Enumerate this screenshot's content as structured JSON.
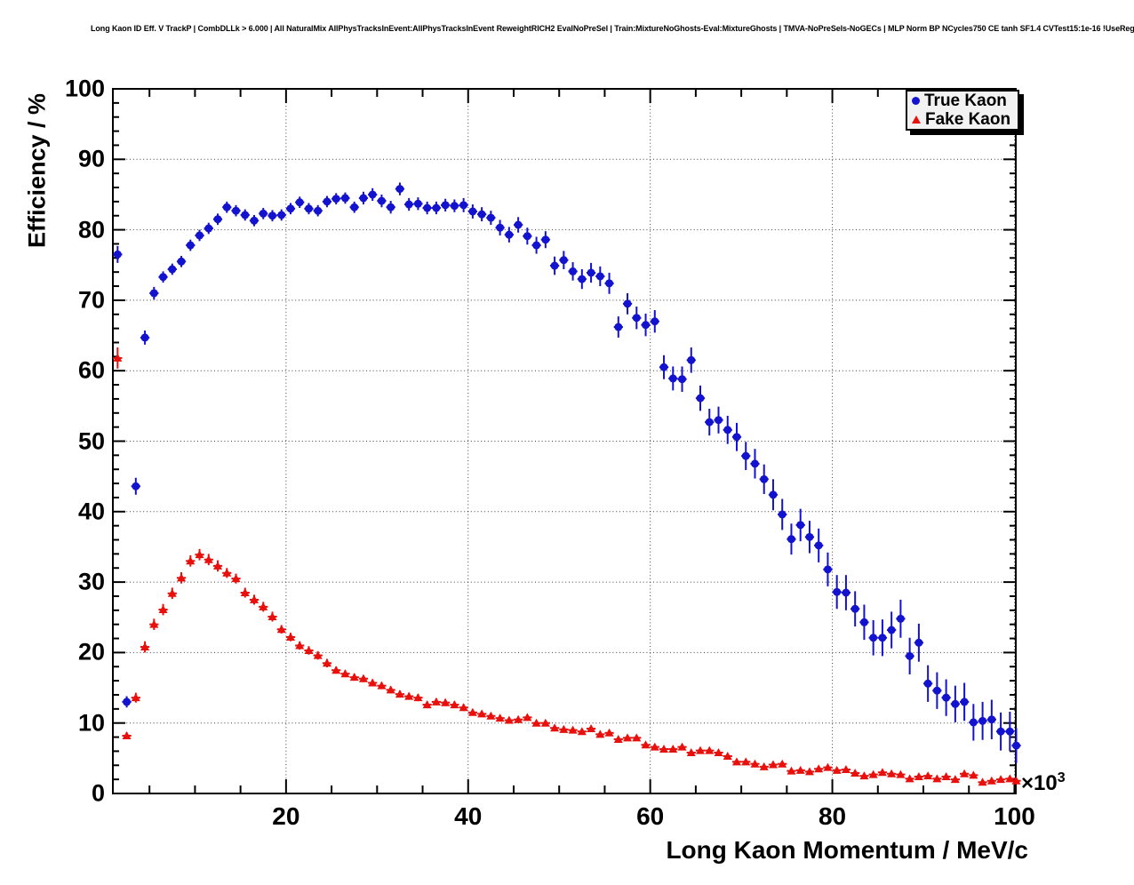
{
  "title": "Long Kaon ID Eff. V TrackP | CombDLLk > 6.000 | All NaturalMix AllPhysTracksInEvent:AllPhysTracksInEvent ReweightRICH2 EvalNoPreSel | Train:MixtureNoGhosts-Eval:MixtureGhosts | TMVA-NoPreSels-NoGECs | MLP Norm BP NCycles750 CE tanh SF1.4 CVTest15:1e-16 !UseReg",
  "colors": {
    "true_kaon": "#1212cf",
    "fake_kaon": "#e8100c",
    "frame": "#000000",
    "legend_bg": "#f2f2f2"
  },
  "chart_data": {
    "type": "scatter",
    "title": "Long Kaon ID Eff. V TrackP | CombDLLk > 6.000 | All NaturalMix AllPhysTracksInEvent:AllPhysTracksInEvent ReweightRICH2 EvalNoPreSel | Train:MixtureNoGhosts-Eval:MixtureGhosts | TMVA-NoPreSels-NoGECs | MLP Norm BP NCycles750 CE tanh SF1.4 CVTest15:1e-16 !UseReg",
    "xlabel": "Long Kaon Momentum / MeV/c",
    "ylabel": "Efficiency / %",
    "x_scale_base": "×10",
    "x_scale_exp": "3",
    "xlim": [
      0.98,
      100.15
    ],
    "ylim": [
      0,
      100
    ],
    "x_ticks": [
      20,
      40,
      60,
      80,
      100
    ],
    "y_ticks": [
      0,
      10,
      20,
      30,
      40,
      50,
      60,
      70,
      80,
      90,
      100
    ],
    "x_minor_step": 5,
    "y_minor_step": 2,
    "grid": true,
    "legend_position": "top-right",
    "x_units_note": "momentum values in units of 10^3 MeV/c, 1 GeV bins, xerr = half bin width",
    "xerr": 0.5,
    "x": [
      1.5,
      2.5,
      3.5,
      4.5,
      5.5,
      6.5,
      7.5,
      8.5,
      9.5,
      10.5,
      11.5,
      12.5,
      13.5,
      14.5,
      15.5,
      16.5,
      17.5,
      18.5,
      19.5,
      20.5,
      21.5,
      22.5,
      23.5,
      24.5,
      25.5,
      26.5,
      27.5,
      28.5,
      29.5,
      30.5,
      31.5,
      32.5,
      33.5,
      34.5,
      35.5,
      36.5,
      37.5,
      38.5,
      39.5,
      40.5,
      41.5,
      42.5,
      43.5,
      44.5,
      45.5,
      46.5,
      47.5,
      48.5,
      49.5,
      50.5,
      51.5,
      52.5,
      53.5,
      54.5,
      55.5,
      56.5,
      57.5,
      58.5,
      59.5,
      60.5,
      61.5,
      62.5,
      63.5,
      64.5,
      65.5,
      66.5,
      67.5,
      68.5,
      69.5,
      70.5,
      71.5,
      72.5,
      73.5,
      74.5,
      75.5,
      76.5,
      77.5,
      78.5,
      79.5,
      80.5,
      81.5,
      82.5,
      83.5,
      84.5,
      85.5,
      86.5,
      87.5,
      88.5,
      89.5,
      90.5,
      91.5,
      92.5,
      93.5,
      94.5,
      95.5,
      96.5,
      97.5,
      98.5,
      99.5,
      100.2
    ],
    "series": [
      {
        "name": "True Kaon",
        "marker": "circle",
        "color": "#1212cf",
        "y": [
          76.5,
          13.0,
          43.6,
          64.7,
          71.0,
          73.3,
          74.4,
          75.5,
          77.8,
          79.2,
          80.2,
          81.5,
          83.2,
          82.7,
          82.1,
          81.3,
          82.3,
          82.0,
          82.1,
          83.0,
          83.9,
          83.0,
          82.7,
          84.0,
          84.4,
          84.5,
          83.2,
          84.5,
          85.0,
          84.1,
          83.2,
          85.8,
          83.6,
          83.7,
          83.1,
          83.1,
          83.5,
          83.4,
          83.5,
          82.6,
          82.2,
          81.7,
          80.3,
          79.3,
          80.7,
          79.1,
          77.8,
          78.6,
          74.9,
          75.7,
          74.1,
          73.0,
          73.9,
          73.4,
          72.4,
          66.2,
          69.5,
          67.5,
          66.5,
          67.0,
          60.5,
          58.9,
          58.8,
          61.5,
          56.1,
          52.7,
          53.0,
          51.6,
          50.6,
          47.9,
          46.8,
          44.6,
          42.4,
          39.6,
          36.1,
          38.1,
          36.4,
          35.2,
          31.8,
          28.6,
          28.5,
          26.2,
          24.3,
          22.1,
          22.1,
          23.2,
          24.8,
          19.5,
          21.4,
          15.6,
          14.6,
          13.6,
          12.7,
          13.0,
          10.1,
          10.3,
          10.5,
          8.8,
          8.8,
          6.8
        ],
        "yerr": [
          1.2,
          0.8,
          1.2,
          1.0,
          0.9,
          0.8,
          0.8,
          0.8,
          0.8,
          0.8,
          0.8,
          0.8,
          0.8,
          0.8,
          0.8,
          0.8,
          0.8,
          0.8,
          0.8,
          0.8,
          0.8,
          0.8,
          0.8,
          0.8,
          0.8,
          0.8,
          0.8,
          0.9,
          0.9,
          0.9,
          0.9,
          0.9,
          0.9,
          0.9,
          0.9,
          0.9,
          0.9,
          0.9,
          1.0,
          1.0,
          1.0,
          1.0,
          1.1,
          1.1,
          1.1,
          1.2,
          1.2,
          1.2,
          1.3,
          1.3,
          1.3,
          1.4,
          1.4,
          1.4,
          1.5,
          1.5,
          1.5,
          1.6,
          1.6,
          1.6,
          1.7,
          1.7,
          1.8,
          1.8,
          1.8,
          1.9,
          1.9,
          2.0,
          2.0,
          2.0,
          2.1,
          2.1,
          2.2,
          2.2,
          2.2,
          2.3,
          2.3,
          2.4,
          2.4,
          2.4,
          2.5,
          2.5,
          2.5,
          2.5,
          2.6,
          2.6,
          2.7,
          2.6,
          2.7,
          2.6,
          2.6,
          2.6,
          2.6,
          2.7,
          2.6,
          2.7,
          2.8,
          2.7,
          2.8,
          2.5
        ]
      },
      {
        "name": "Fake Kaon",
        "marker": "triangle",
        "color": "#e8100c",
        "y": [
          61.8,
          8.2,
          13.6,
          20.8,
          24.0,
          26.1,
          28.4,
          30.6,
          33.0,
          33.9,
          33.2,
          32.3,
          31.3,
          30.5,
          28.5,
          27.5,
          26.5,
          25.1,
          23.3,
          22.2,
          21.0,
          20.3,
          19.6,
          18.5,
          17.5,
          17.0,
          16.5,
          16.3,
          15.7,
          15.3,
          14.7,
          14.1,
          13.8,
          13.6,
          12.6,
          13.0,
          12.9,
          12.6,
          12.2,
          11.5,
          11.3,
          11.0,
          10.7,
          10.4,
          10.5,
          10.8,
          10.0,
          10.0,
          9.3,
          9.1,
          9.0,
          8.8,
          9.2,
          8.4,
          8.6,
          7.7,
          7.9,
          7.9,
          6.9,
          6.6,
          6.3,
          6.3,
          6.6,
          5.8,
          6.1,
          6.1,
          5.8,
          5.3,
          4.5,
          4.5,
          4.2,
          3.8,
          4.1,
          4.2,
          3.2,
          3.3,
          3.1,
          3.5,
          3.7,
          3.3,
          3.4,
          2.9,
          2.5,
          2.7,
          3.0,
          2.8,
          2.7,
          2.1,
          2.4,
          2.5,
          2.1,
          2.4,
          2.0,
          2.8,
          2.6,
          1.6,
          1.8,
          2.0,
          2.1,
          1.8
        ],
        "yerr": [
          1.5,
          0.5,
          0.7,
          0.8,
          0.8,
          0.8,
          0.8,
          0.8,
          0.8,
          0.8,
          0.8,
          0.8,
          0.7,
          0.7,
          0.7,
          0.7,
          0.7,
          0.7,
          0.6,
          0.6,
          0.6,
          0.6,
          0.6,
          0.6,
          0.5,
          0.5,
          0.5,
          0.5,
          0.5,
          0.5,
          0.5,
          0.5,
          0.5,
          0.5,
          0.5,
          0.5,
          0.5,
          0.5,
          0.5,
          0.4,
          0.4,
          0.4,
          0.4,
          0.4,
          0.4,
          0.4,
          0.4,
          0.4,
          0.4,
          0.4,
          0.4,
          0.4,
          0.4,
          0.4,
          0.4,
          0.4,
          0.4,
          0.4,
          0.3,
          0.3,
          0.3,
          0.3,
          0.3,
          0.3,
          0.3,
          0.3,
          0.3,
          0.3,
          0.3,
          0.3,
          0.3,
          0.3,
          0.3,
          0.3,
          0.3,
          0.3,
          0.3,
          0.3,
          0.3,
          0.3,
          0.3,
          0.3,
          0.3,
          0.3,
          0.3,
          0.3,
          0.3,
          0.2,
          0.3,
          0.3,
          0.2,
          0.3,
          0.2,
          0.3,
          0.3,
          0.2,
          0.2,
          0.2,
          0.2,
          0.3
        ]
      }
    ]
  }
}
